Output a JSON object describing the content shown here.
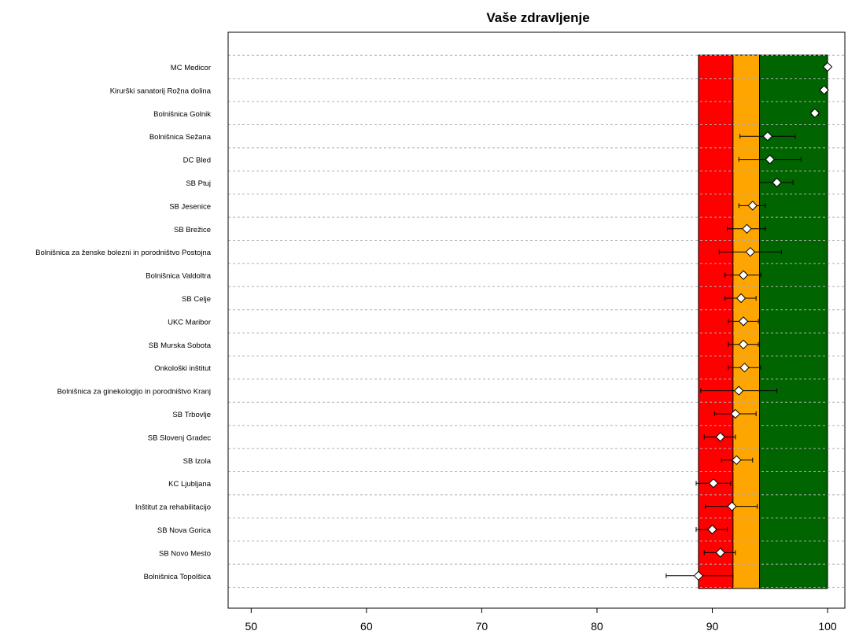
{
  "chart_data": {
    "type": "scatter",
    "title": "Vaše zdravljenje",
    "xlabel": "",
    "ylabel": "",
    "xlim": [
      48,
      101.5
    ],
    "xticks": [
      50,
      60,
      70,
      80,
      90,
      100
    ],
    "grid": true,
    "categories": [
      "MC Medicor",
      "Kirurški sanatorij Rožna dolina",
      "Bolnišnica Golnik",
      "Bolnišnica Sežana",
      "DC Bled",
      "SB Ptuj",
      "SB Jesenice",
      "SB Brežice",
      "Bolnišnica za ženske bolezni in porodništvo Postojna",
      "Bolnišnica Valdoltra",
      "SB Celje",
      "UKC Maribor",
      "SB Murska Sobota",
      "Onkološki inštitut",
      "Bolnišnica za ginekologijo in porodništvo Kranj",
      "SB Trbovlje",
      "SB Slovenj Gradec",
      "SB Izola",
      "KC Ljubljana",
      "Inštitut za rehabilitacijo",
      "SB Nova Gorica",
      "SB Novo Mesto",
      "Bolnišnica Topolšica"
    ],
    "values": [
      100.0,
      99.7,
      98.9,
      94.8,
      95.0,
      95.6,
      93.5,
      93.0,
      93.3,
      92.7,
      92.5,
      92.7,
      92.7,
      92.8,
      92.3,
      92.0,
      90.7,
      92.1,
      90.1,
      91.7,
      90.0,
      90.7,
      88.8
    ],
    "lower": [
      null,
      null,
      98.6,
      92.4,
      92.3,
      94.1,
      92.3,
      91.3,
      90.6,
      91.1,
      91.1,
      91.4,
      91.4,
      91.4,
      89.0,
      90.2,
      89.3,
      90.8,
      88.6,
      89.4,
      88.6,
      89.3,
      86.0
    ],
    "upper": [
      null,
      null,
      99.2,
      97.2,
      97.7,
      97.0,
      94.6,
      94.6,
      96.0,
      94.2,
      93.8,
      94.0,
      94.0,
      94.2,
      95.6,
      93.8,
      92.0,
      93.5,
      91.6,
      93.9,
      91.3,
      92.0,
      91.8
    ],
    "bands": [
      {
        "from": 88.8,
        "to": 91.8,
        "color": "#ff0000"
      },
      {
        "from": 91.8,
        "to": 94.1,
        "color": "#ffa500"
      },
      {
        "from": 94.1,
        "to": 100.0,
        "color": "#006400"
      }
    ]
  }
}
